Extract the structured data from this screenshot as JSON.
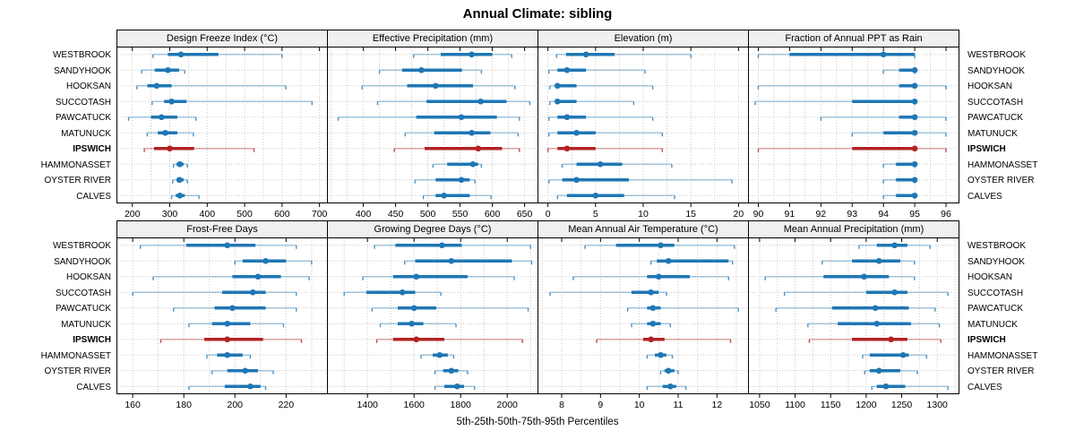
{
  "chart_data": {
    "type": "dotplot-interval",
    "title": "Annual Climate: sibling",
    "caption": "5th-25th-50th-75th-95th Percentiles",
    "percentiles": [
      5,
      25,
      50,
      75,
      95
    ],
    "legend_position": "none",
    "grid": true,
    "stations": [
      "WESTBROOK",
      "SANDYHOOK",
      "HOOKSAN",
      "SUCCOTASH",
      "PAWCATUCK",
      "MATUNUCK",
      "IPSWICH",
      "HAMMONASSET",
      "OYSTER RIVER",
      "CALVES"
    ],
    "highlight_station": "IPSWICH",
    "colors": {
      "series": "#1F77B4",
      "series_faint": "rgba(31,119,180,0.38)",
      "series_cap": "rgba(31,119,180,0.8)",
      "highlight": "#B22222",
      "highlight_faint": "rgba(178,34,34,0.38)",
      "highlight_cap": "rgba(178,34,34,0.8)",
      "grid": "#C9C9C9",
      "strip_bg": "#F0F0F0",
      "border": "#000000"
    },
    "panels": [
      {
        "title": "Design Freeze Index (°C)",
        "xlim": [
          160,
          720
        ],
        "ticks": [
          200,
          300,
          400,
          500,
          600,
          700
        ],
        "values": [
          [
            255,
            295,
            330,
            430,
            600
          ],
          [
            225,
            260,
            295,
            325,
            340
          ],
          [
            212,
            240,
            265,
            305,
            610
          ],
          [
            253,
            285,
            305,
            345,
            680
          ],
          [
            190,
            250,
            278,
            320,
            370
          ],
          [
            240,
            268,
            288,
            320,
            363
          ],
          [
            232,
            258,
            300,
            365,
            525
          ],
          [
            310,
            318,
            327,
            337,
            347
          ],
          [
            308,
            318,
            326,
            337,
            347
          ],
          [
            305,
            316,
            327,
            340,
            378
          ]
        ]
      },
      {
        "title": "Effective Precipitation (mm)",
        "xlim": [
          345,
          670
        ],
        "ticks": [
          400,
          450,
          500,
          550,
          600,
          650
        ],
        "values": [
          [
            478,
            520,
            568,
            600,
            630
          ],
          [
            425,
            460,
            490,
            553,
            583
          ],
          [
            398,
            468,
            512,
            570,
            635
          ],
          [
            422,
            498,
            582,
            622,
            658
          ],
          [
            361,
            482,
            552,
            607,
            642
          ],
          [
            465,
            510,
            568,
            597,
            640
          ],
          [
            448,
            495,
            578,
            615,
            642
          ],
          [
            508,
            530,
            570,
            578,
            583
          ],
          [
            480,
            512,
            552,
            565,
            573
          ],
          [
            493,
            512,
            525,
            565,
            598
          ]
        ]
      },
      {
        "title": "Elevation (m)",
        "xlim": [
          -1,
          21
        ],
        "ticks": [
          0,
          5,
          10,
          15,
          20
        ],
        "values": [
          [
            0.9,
            1.9,
            4,
            7,
            15
          ],
          [
            0.1,
            1,
            2,
            4,
            10.2
          ],
          [
            0.2,
            0.8,
            1,
            3,
            11
          ],
          [
            0.2,
            0.8,
            1,
            3,
            9
          ],
          [
            0.1,
            1,
            2,
            4,
            11
          ],
          [
            0.1,
            1,
            3,
            5,
            12
          ],
          [
            0,
            1,
            2,
            5,
            12
          ],
          [
            1.5,
            3,
            5.5,
            7.8,
            13
          ],
          [
            0.1,
            1.5,
            3,
            8.5,
            19.3
          ],
          [
            1,
            2,
            5,
            8,
            13.3
          ]
        ]
      },
      {
        "title": "Fraction of Annual PPT as Rain",
        "xlim": [
          89.7,
          96.4
        ],
        "ticks": [
          90,
          91,
          92,
          93,
          94,
          95,
          96
        ],
        "values": [
          [
            90,
            91,
            94,
            95,
            95
          ],
          [
            94,
            94.5,
            95,
            95,
            95
          ],
          [
            90,
            94.5,
            95,
            95,
            96
          ],
          [
            89.9,
            93,
            95,
            95,
            95
          ],
          [
            92,
            94.5,
            95,
            95,
            96
          ],
          [
            93,
            94,
            95,
            95,
            96
          ],
          [
            90,
            93,
            95,
            95,
            96
          ],
          [
            94,
            94.4,
            95,
            95,
            95
          ],
          [
            94,
            94.4,
            95,
            95,
            95
          ],
          [
            94,
            94.4,
            95,
            95,
            95
          ]
        ]
      },
      {
        "title": "Frost-Free Days",
        "xlim": [
          154,
          236
        ],
        "ticks": [
          160,
          180,
          200,
          220
        ],
        "values": [
          [
            163,
            181,
            197,
            208,
            224
          ],
          [
            200,
            203,
            212,
            220,
            230
          ],
          [
            168,
            199,
            209,
            218,
            229
          ],
          [
            160,
            195,
            207,
            212,
            224
          ],
          [
            176,
            192,
            199,
            212,
            224
          ],
          [
            182,
            191,
            197,
            206,
            219
          ],
          [
            171,
            188,
            197,
            211,
            226
          ],
          [
            189,
            193,
            197,
            203,
            206
          ],
          [
            191,
            197,
            204,
            209,
            215
          ],
          [
            182,
            196,
            206,
            210,
            212
          ]
        ]
      },
      {
        "title": "Growing Degree Days (°C)",
        "xlim": [
          1230,
          2130
        ],
        "ticks": [
          1400,
          1600,
          1800,
          2000
        ],
        "values": [
          [
            1430,
            1520,
            1720,
            1805,
            2100
          ],
          [
            1560,
            1605,
            1760,
            2020,
            2105
          ],
          [
            1380,
            1510,
            1610,
            1830,
            2030
          ],
          [
            1300,
            1395,
            1550,
            1605,
            1715
          ],
          [
            1420,
            1530,
            1600,
            1695,
            2090
          ],
          [
            1455,
            1530,
            1590,
            1640,
            1780
          ],
          [
            1440,
            1510,
            1610,
            1730,
            2065
          ],
          [
            1630,
            1680,
            1710,
            1745,
            1770
          ],
          [
            1690,
            1725,
            1760,
            1790,
            1830
          ],
          [
            1690,
            1730,
            1785,
            1815,
            1860
          ]
        ]
      },
      {
        "title": "Mean Annual Air Temperature (°C)",
        "xlim": [
          7.4,
          12.8
        ],
        "ticks": [
          8,
          9,
          10,
          11,
          12
        ],
        "values": [
          [
            8.6,
            9.4,
            10.55,
            10.9,
            12.45
          ],
          [
            10.3,
            10.45,
            10.75,
            12.3,
            12.4
          ],
          [
            8.3,
            10.2,
            10.5,
            11.3,
            12.3
          ],
          [
            7.7,
            9.8,
            10.3,
            10.5,
            10.7
          ],
          [
            9.7,
            10.2,
            10.35,
            10.55,
            12.55
          ],
          [
            9.8,
            10.2,
            10.35,
            10.55,
            10.8
          ],
          [
            8.9,
            10.1,
            10.3,
            10.65,
            12.35
          ],
          [
            10.2,
            10.4,
            10.55,
            10.7,
            10.85
          ],
          [
            10.55,
            10.65,
            10.75,
            10.9,
            11.0
          ],
          [
            10.2,
            10.6,
            10.8,
            10.95,
            11.2
          ]
        ]
      },
      {
        "title": "Mean Annual Precipitation (mm)",
        "xlim": [
          1035,
          1330
        ],
        "ticks": [
          1050,
          1100,
          1150,
          1200,
          1250,
          1300
        ],
        "values": [
          [
            1190,
            1215,
            1240,
            1258,
            1290
          ],
          [
            1138,
            1180,
            1218,
            1248,
            1268
          ],
          [
            1058,
            1140,
            1197,
            1232,
            1268
          ],
          [
            1085,
            1200,
            1240,
            1258,
            1315
          ],
          [
            1073,
            1152,
            1213,
            1260,
            1297
          ],
          [
            1118,
            1160,
            1215,
            1263,
            1303
          ],
          [
            1120,
            1180,
            1235,
            1258,
            1305
          ],
          [
            1195,
            1205,
            1252,
            1260,
            1285
          ],
          [
            1198,
            1205,
            1218,
            1248,
            1272
          ],
          [
            1208,
            1215,
            1228,
            1255,
            1315
          ]
        ]
      }
    ]
  }
}
